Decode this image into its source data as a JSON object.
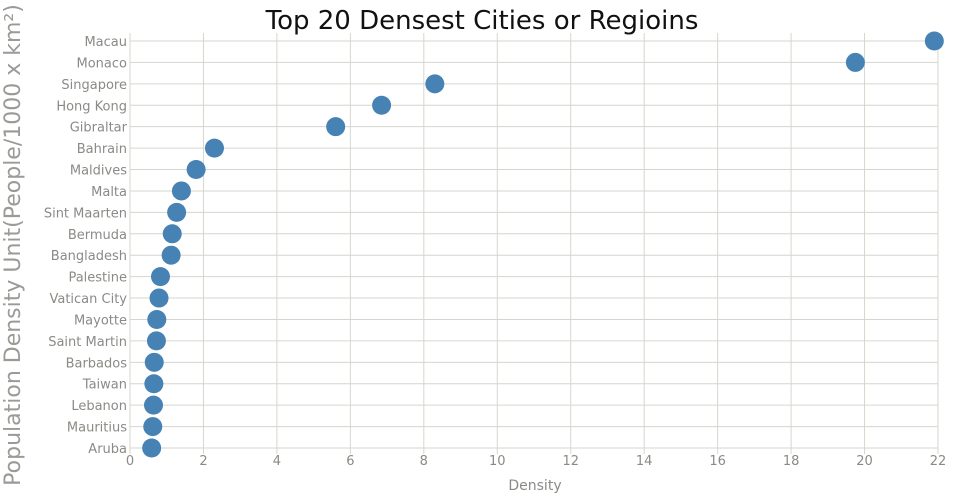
{
  "chart_data": {
    "type": "scatter",
    "title": "Top 20 Densest Cities or Regioins",
    "xlabel": "Density",
    "ylabel": "Population Density Unit(People/1000 x km²)",
    "xlim": [
      0,
      22
    ],
    "xticks": [
      0,
      2,
      4,
      6,
      8,
      10,
      12,
      14,
      16,
      18,
      20,
      22
    ],
    "grid": true,
    "categories": [
      "Macau",
      "Monaco",
      "Singapore",
      "Hong Kong",
      "Gibraltar",
      "Bahrain",
      "Maldives",
      "Malta",
      "Sint Maarten",
      "Bermuda",
      "Bangladesh",
      "Palestine",
      "Vatican City",
      "Mayotte",
      "Saint Martin",
      "Barbados",
      "Taiwan",
      "Lebanon",
      "Mauritius",
      "Aruba"
    ],
    "values": [
      21.9,
      19.75,
      8.3,
      6.85,
      5.6,
      2.3,
      1.8,
      1.4,
      1.27,
      1.15,
      1.12,
      0.83,
      0.79,
      0.73,
      0.72,
      0.66,
      0.65,
      0.64,
      0.62,
      0.59
    ],
    "colors": {
      "marker": "#4682b4",
      "grid": "#d6d6cf",
      "text": "#8a8a86"
    }
  }
}
